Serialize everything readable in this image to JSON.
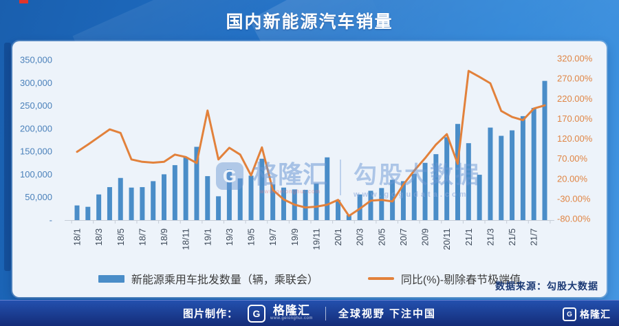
{
  "header": {
    "note": "title bound from chart_data.title"
  },
  "watermark": {
    "logo_letter": "G",
    "brand": "格隆汇",
    "brand_url": "www.gelonghui.com",
    "product": "勾股大数据",
    "product_url": "www.gogudata.com"
  },
  "source_note": "数据来源：勾股大数据",
  "footer": {
    "made_by": "图片制作：",
    "logo_letter": "G",
    "logo_text": "格隆汇",
    "logo_url": "www.gelonghui.com",
    "slogan": "全球视野 下注中国",
    "right_logo_letter": "G",
    "right_logo_text": "格隆汇"
  },
  "chart_data": {
    "type": "bar",
    "title": "国内新能源汽车销量",
    "legend_position": "bottom",
    "grid": false,
    "categories": [
      "18/1",
      "18/2",
      "18/3",
      "18/4",
      "18/5",
      "18/6",
      "18/7",
      "18/8",
      "18/9",
      "18/10",
      "18/11",
      "18/12",
      "19/1",
      "19/2",
      "19/3",
      "19/4",
      "19/5",
      "19/6",
      "19/7",
      "19/8",
      "19/9",
      "19/10",
      "19/11",
      "19/12",
      "20/1",
      "20/2",
      "20/3",
      "20/4",
      "20/5",
      "20/6",
      "20/7",
      "20/8",
      "20/9",
      "20/10",
      "20/11",
      "20/12",
      "21/1",
      "21/2",
      "21/3",
      "21/4",
      "21/5",
      "21/6",
      "21/7",
      "21/8"
    ],
    "x_tick_labels": [
      "18/1",
      "18/3",
      "18/5",
      "18/7",
      "18/9",
      "18/11",
      "19/1",
      "19/3",
      "19/5",
      "19/7",
      "19/9",
      "19/11",
      "20/1",
      "20/3",
      "20/5",
      "20/7",
      "20/9",
      "20/11",
      "21/1",
      "21/3",
      "21/5",
      "21/7"
    ],
    "series": [
      {
        "name": "新能源乘用车批发数量（辆，乘联会）",
        "type": "bar",
        "axis": "left",
        "color": "#4a8dc8",
        "values": [
          32000,
          29000,
          56000,
          72000,
          92000,
          71000,
          72000,
          85000,
          100000,
          120000,
          137000,
          160000,
          96000,
          52000,
          111000,
          91000,
          97000,
          134000,
          78000,
          71000,
          67000,
          66000,
          80000,
          137000,
          44000,
          11000,
          56000,
          64000,
          70000,
          88000,
          85000,
          101000,
          125000,
          144000,
          181000,
          210000,
          168000,
          99000,
          202000,
          184000,
          196000,
          227000,
          245000,
          304000
        ]
      },
      {
        "name": "同比(%)-剔除春节极端值",
        "type": "line",
        "axis": "right",
        "color": "#e2813b",
        "values": [
          87,
          105,
          124,
          143,
          134,
          68,
          62,
          60,
          62,
          80,
          74,
          59,
          190,
          68,
          97,
          80,
          28,
          98,
          -8,
          -32,
          -45,
          -52,
          -50,
          -45,
          -33,
          -73,
          -55,
          -35,
          -33,
          -37,
          5,
          40,
          71,
          105,
          131,
          57,
          289,
          274,
          258,
          189,
          174,
          166,
          195,
          203
        ]
      }
    ],
    "left_axis": {
      "min": 0,
      "max": 350000,
      "step": 50000,
      "tick_labels": [
        "350,000",
        "300,000",
        "250,000",
        "200,000",
        "150,000",
        "100,000",
        "50,000",
        "-"
      ],
      "label_color": "#4a80ba"
    },
    "right_axis": {
      "min": -80,
      "max": 320,
      "step": 50,
      "tick_labels": [
        "320.00%",
        "270.00%",
        "220.00%",
        "170.00%",
        "120.00%",
        "70.00%",
        "20.00%",
        "-30.00%",
        "-80.00%"
      ],
      "label_color": "#e08544"
    },
    "x_axis": {
      "label_color": "#3c4858",
      "line_color": "#c5ccd6"
    }
  }
}
